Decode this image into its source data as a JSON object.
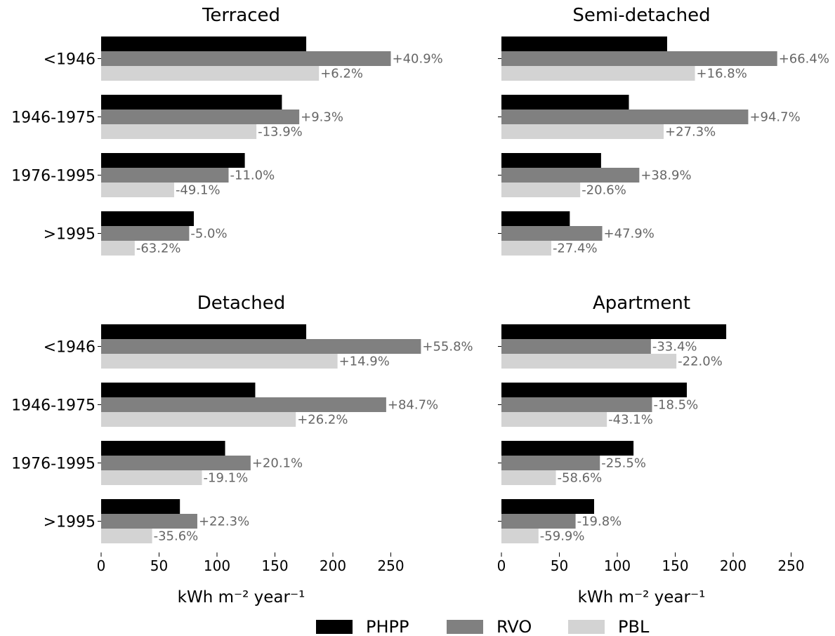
{
  "chart_data": {
    "type": "bar",
    "orientation": "horizontal",
    "categories": [
      "<1946",
      "1946-1975",
      "1976-1995",
      ">1995"
    ],
    "series_names": [
      "PHPP",
      "RVO",
      "PBL"
    ],
    "colors": {
      "PHPP": "#000000",
      "RVO": "#808080",
      "PBL": "#d3d3d3"
    },
    "label_color": "#666666",
    "xlim": [
      0,
      260
    ],
    "xticks": [
      0,
      50,
      100,
      150,
      200,
      250
    ],
    "xlabel": "kWh m⁻² year⁻¹",
    "legend": {
      "placement": "bottom-center",
      "entries": [
        "PHPP",
        "RVO",
        "PBL"
      ]
    },
    "grid": false,
    "panels": [
      {
        "title": "Terraced",
        "series": [
          {
            "name": "PHPP",
            "values": [
              177,
              156,
              124,
              80
            ]
          },
          {
            "name": "RVO",
            "values": [
              250,
              171,
              110,
              76
            ],
            "labels": [
              "+40.9%",
              "+9.3%",
              "-11.0%",
              "-5.0%"
            ]
          },
          {
            "name": "PBL",
            "values": [
              188,
              134,
              63,
              29
            ],
            "labels": [
              "+6.2%",
              "-13.9%",
              "-49.1%",
              "-63.2%"
            ]
          }
        ]
      },
      {
        "title": "Semi-detached",
        "series": [
          {
            "name": "PHPP",
            "values": [
              143,
              110,
              86,
              59
            ]
          },
          {
            "name": "RVO",
            "values": [
              238,
              213,
              119,
              87
            ],
            "labels": [
              "+66.4%",
              "+94.7%",
              "+38.9%",
              "+47.9%"
            ]
          },
          {
            "name": "PBL",
            "values": [
              167,
              140,
              68,
              43
            ],
            "labels": [
              "+16.8%",
              "+27.3%",
              "-20.6%",
              "-27.4%"
            ]
          }
        ]
      },
      {
        "title": "Detached",
        "series": [
          {
            "name": "PHPP",
            "values": [
              177,
              133,
              107,
              68
            ]
          },
          {
            "name": "RVO",
            "values": [
              276,
              246,
              129,
              83
            ],
            "labels": [
              "+55.8%",
              "+84.7%",
              "+20.1%",
              "+22.3%"
            ]
          },
          {
            "name": "PBL",
            "values": [
              204,
              168,
              87,
              44
            ],
            "labels": [
              "+14.9%",
              "+26.2%",
              "-19.1%",
              "-35.6%"
            ]
          }
        ]
      },
      {
        "title": "Apartment",
        "series": [
          {
            "name": "PHPP",
            "values": [
              194,
              160,
              114,
              80
            ]
          },
          {
            "name": "RVO",
            "values": [
              129,
              130,
              85,
              64
            ],
            "labels": [
              "-33.4%",
              "-18.5%",
              "-25.5%",
              "-19.8%"
            ]
          },
          {
            "name": "PBL",
            "values": [
              151,
              91,
              47,
              32
            ],
            "labels": [
              "-22.0%",
              "-43.1%",
              "-58.6%",
              "-59.9%"
            ]
          }
        ]
      }
    ]
  }
}
